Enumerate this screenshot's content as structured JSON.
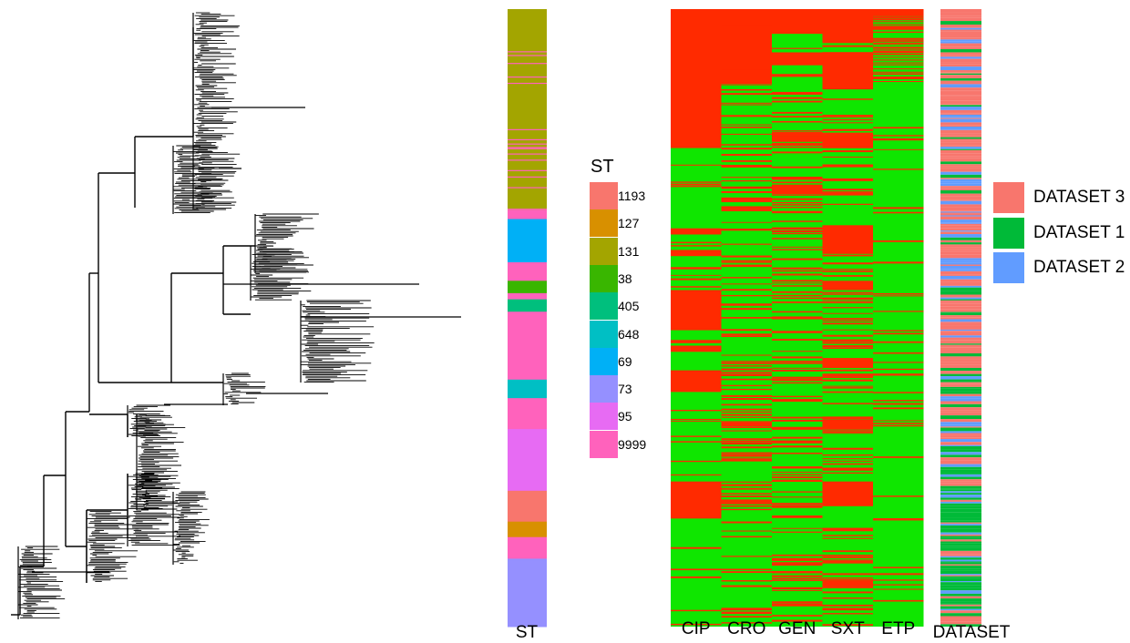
{
  "colors": {
    "resistant": "#ff2a00",
    "susceptible": "#0fe600",
    "st": {
      "1193": "#f8766d",
      "127": "#d89000",
      "131": "#a3a500",
      "38": "#39b600",
      "405": "#00bf7d",
      "648": "#00bfc4",
      "69": "#00b0f6",
      "73": "#9590ff",
      "95": "#e76bf3",
      "9999": "#ff62bc"
    },
    "dataset": {
      "DATASET 3": "#f8766d",
      "DATASET 1": "#00ba38",
      "DATASET 2": "#619cff"
    }
  },
  "st_legend": {
    "title": "ST",
    "items": [
      {
        "label": "1193",
        "key": "1193"
      },
      {
        "label": "127",
        "key": "127"
      },
      {
        "label": "131",
        "key": "131"
      },
      {
        "label": "38",
        "key": "38"
      },
      {
        "label": "405",
        "key": "405"
      },
      {
        "label": "648",
        "key": "648"
      },
      {
        "label": "69",
        "key": "69"
      },
      {
        "label": "73",
        "key": "73"
      },
      {
        "label": "95",
        "key": "95"
      },
      {
        "label": "9999",
        "key": "9999"
      }
    ]
  },
  "dataset_legend": {
    "items": [
      "DATASET 3",
      "DATASET 1",
      "DATASET 2"
    ]
  },
  "st_bar": {
    "label": "ST",
    "blocks": [
      {
        "st": "131",
        "frac": 0.325
      },
      {
        "st": "9999",
        "frac": 0.015
      },
      {
        "st": "69",
        "frac": 0.07
      },
      {
        "st": "9999",
        "frac": 0.03
      },
      {
        "st": "38",
        "frac": 0.02
      },
      {
        "st": "9999",
        "frac": 0.01
      },
      {
        "st": "405",
        "frac": 0.02
      },
      {
        "st": "9999",
        "frac": 0.11
      },
      {
        "st": "648",
        "frac": 0.03
      },
      {
        "st": "9999",
        "frac": 0.05
      },
      {
        "st": "95",
        "frac": 0.1
      },
      {
        "st": "1193",
        "frac": 0.05
      },
      {
        "st": "127",
        "frac": 0.025
      },
      {
        "st": "9999",
        "frac": 0.035
      },
      {
        "st": "73",
        "frac": 0.11
      }
    ]
  },
  "heatmap": {
    "columns": [
      {
        "label": "CIP",
        "blocks": [
          [
            0.0,
            0.225
          ],
          [
            0.355,
            0.365
          ],
          [
            0.39,
            0.4
          ],
          [
            0.455,
            0.52
          ],
          [
            0.545,
            0.555
          ],
          [
            0.585,
            0.62
          ],
          [
            0.765,
            0.825
          ]
        ]
      },
      {
        "label": "CRO",
        "blocks": [
          [
            0.0,
            0.12
          ]
        ]
      },
      {
        "label": "GEN",
        "blocks": [
          [
            0.0,
            0.04
          ],
          [
            0.07,
            0.09
          ],
          [
            0.2,
            0.215
          ],
          [
            0.285,
            0.3
          ]
        ]
      },
      {
        "label": "SXT",
        "blocks": [
          [
            0.0,
            0.055
          ],
          [
            0.07,
            0.13
          ],
          [
            0.2,
            0.225
          ],
          [
            0.35,
            0.395
          ],
          [
            0.44,
            0.455
          ],
          [
            0.565,
            0.58
          ],
          [
            0.665,
            0.68
          ],
          [
            0.765,
            0.805
          ],
          [
            0.925,
            0.935
          ]
        ]
      },
      {
        "label": "ETP",
        "blocks": [
          [
            0.0,
            0.01
          ]
        ]
      }
    ]
  },
  "dataset_bar": {
    "label": "DATASET"
  }
}
